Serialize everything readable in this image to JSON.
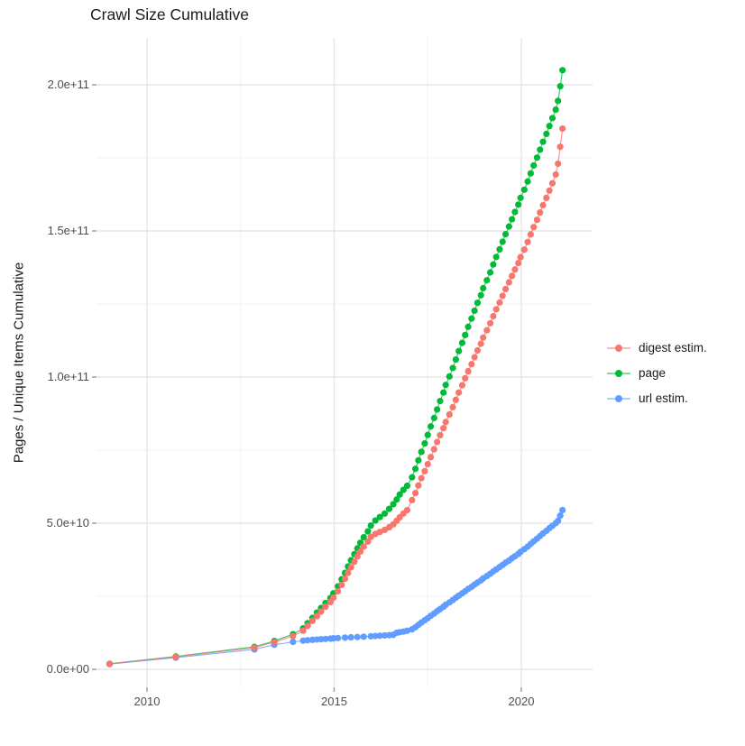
{
  "title": "Crawl Size Cumulative",
  "y_axis_title": "Pages / Unique Items Cumulative",
  "chart_data": {
    "type": "line",
    "title": "Crawl Size Cumulative",
    "xlabel": "",
    "ylabel": "Pages / Unique Items Cumulative",
    "legend_position": "right",
    "grid": true,
    "background": "#FFFFFF",
    "x_unit": "year (decimal)",
    "value_unit": "items, stored as billions (1e9)",
    "xlim": [
      2008.65,
      2021.9
    ],
    "ylim": [
      -6000000000,
      216000000000
    ],
    "x_ticks": {
      "major": [
        {
          "v": 2010,
          "label": "2010"
        },
        {
          "v": 2015,
          "label": "2015"
        },
        {
          "v": 2020,
          "label": "2020"
        }
      ],
      "minor": [
        2012.5,
        2017.5
      ]
    },
    "y_ticks": {
      "major": [
        {
          "v": 0,
          "label": "0.0e+00"
        },
        {
          "v": 50,
          "label": "5.0e+10"
        },
        {
          "v": 100,
          "label": "1.0e+11"
        },
        {
          "v": 150,
          "label": "1.5e+11"
        },
        {
          "v": 200,
          "label": "2.0e+11"
        }
      ],
      "minor": [
        25,
        75,
        125,
        175
      ]
    },
    "series": [
      {
        "name": "digest estim.",
        "color": "#F8766D",
        "points": [
          [
            2009.0,
            1.85
          ],
          [
            2010.77,
            4.25
          ],
          [
            2012.87,
            7.4
          ],
          [
            2013.4,
            9.3
          ],
          [
            2013.9,
            11.4
          ],
          [
            2014.17,
            13.2
          ],
          [
            2014.29,
            14.9
          ],
          [
            2014.42,
            16.6
          ],
          [
            2014.54,
            18.2
          ],
          [
            2014.65,
            19.8
          ],
          [
            2014.77,
            21.4
          ],
          [
            2014.9,
            23.0
          ],
          [
            2014.98,
            24.5
          ],
          [
            2015.1,
            26.7
          ],
          [
            2015.2,
            28.9
          ],
          [
            2015.29,
            31.0
          ],
          [
            2015.37,
            33.0
          ],
          [
            2015.45,
            34.9
          ],
          [
            2015.54,
            36.8
          ],
          [
            2015.62,
            38.6
          ],
          [
            2015.7,
            40.3
          ],
          [
            2015.79,
            42.0
          ],
          [
            2015.9,
            43.7
          ],
          [
            2015.98,
            45.3
          ],
          [
            2016.1,
            46.3
          ],
          [
            2016.22,
            47.0
          ],
          [
            2016.35,
            47.7
          ],
          [
            2016.47,
            48.6
          ],
          [
            2016.58,
            49.6
          ],
          [
            2016.67,
            50.8
          ],
          [
            2016.75,
            52.0
          ],
          [
            2016.85,
            53.3
          ],
          [
            2016.95,
            54.5
          ],
          [
            2017.08,
            57.9
          ],
          [
            2017.17,
            60.3
          ],
          [
            2017.25,
            62.9
          ],
          [
            2017.33,
            65.4
          ],
          [
            2017.42,
            67.8
          ],
          [
            2017.5,
            70.2
          ],
          [
            2017.58,
            72.6
          ],
          [
            2017.67,
            75.3
          ],
          [
            2017.75,
            77.8
          ],
          [
            2017.83,
            80.1
          ],
          [
            2017.92,
            82.5
          ],
          [
            2017.98,
            84.6
          ],
          [
            2018.08,
            87.2
          ],
          [
            2018.17,
            89.7
          ],
          [
            2018.25,
            92.2
          ],
          [
            2018.33,
            94.7
          ],
          [
            2018.42,
            97.2
          ],
          [
            2018.5,
            99.6
          ],
          [
            2018.58,
            102.0
          ],
          [
            2018.67,
            104.4
          ],
          [
            2018.75,
            106.8
          ],
          [
            2018.83,
            109.1
          ],
          [
            2018.92,
            111.4
          ],
          [
            2018.98,
            113.5
          ],
          [
            2019.08,
            116.0
          ],
          [
            2019.17,
            118.4
          ],
          [
            2019.25,
            120.8
          ],
          [
            2019.33,
            123.2
          ],
          [
            2019.42,
            125.5
          ],
          [
            2019.5,
            127.8
          ],
          [
            2019.58,
            130.1
          ],
          [
            2019.67,
            132.4
          ],
          [
            2019.75,
            134.6
          ],
          [
            2019.83,
            136.8
          ],
          [
            2019.92,
            139.0
          ],
          [
            2019.98,
            141.0
          ],
          [
            2020.08,
            143.6
          ],
          [
            2020.17,
            146.2
          ],
          [
            2020.25,
            148.8
          ],
          [
            2020.33,
            151.3
          ],
          [
            2020.42,
            153.8
          ],
          [
            2020.5,
            156.3
          ],
          [
            2020.58,
            158.8
          ],
          [
            2020.67,
            161.3
          ],
          [
            2020.75,
            163.8
          ],
          [
            2020.83,
            166.3
          ],
          [
            2020.92,
            169.3
          ],
          [
            2020.98,
            173.0
          ],
          [
            2021.04,
            178.8
          ],
          [
            2021.1,
            185.0
          ]
        ]
      },
      {
        "name": "page",
        "color": "#00BA38",
        "points": [
          [
            2009.0,
            1.9
          ],
          [
            2010.77,
            4.4
          ],
          [
            2012.87,
            7.7
          ],
          [
            2013.4,
            9.7
          ],
          [
            2013.9,
            12.0
          ],
          [
            2014.17,
            14.0
          ],
          [
            2014.29,
            15.8
          ],
          [
            2014.42,
            17.6
          ],
          [
            2014.54,
            19.4
          ],
          [
            2014.65,
            21.0
          ],
          [
            2014.77,
            22.7
          ],
          [
            2014.9,
            24.4
          ],
          [
            2014.98,
            26.0
          ],
          [
            2015.1,
            28.4
          ],
          [
            2015.2,
            30.8
          ],
          [
            2015.29,
            33.0
          ],
          [
            2015.37,
            35.2
          ],
          [
            2015.45,
            37.3
          ],
          [
            2015.54,
            39.4
          ],
          [
            2015.62,
            41.4
          ],
          [
            2015.7,
            43.3
          ],
          [
            2015.79,
            45.2
          ],
          [
            2015.9,
            47.2
          ],
          [
            2015.98,
            49.2
          ],
          [
            2016.1,
            50.9
          ],
          [
            2016.22,
            52.1
          ],
          [
            2016.35,
            53.3
          ],
          [
            2016.47,
            54.9
          ],
          [
            2016.58,
            56.5
          ],
          [
            2016.67,
            58.1
          ],
          [
            2016.75,
            59.8
          ],
          [
            2016.85,
            61.4
          ],
          [
            2016.95,
            62.8
          ],
          [
            2017.08,
            65.7
          ],
          [
            2017.17,
            68.6
          ],
          [
            2017.25,
            71.5
          ],
          [
            2017.33,
            74.4
          ],
          [
            2017.42,
            77.3
          ],
          [
            2017.5,
            80.2
          ],
          [
            2017.58,
            83.1
          ],
          [
            2017.67,
            86.0
          ],
          [
            2017.75,
            88.9
          ],
          [
            2017.83,
            91.8
          ],
          [
            2017.92,
            94.7
          ],
          [
            2017.98,
            97.3
          ],
          [
            2018.08,
            100.2
          ],
          [
            2018.17,
            103.1
          ],
          [
            2018.25,
            106.0
          ],
          [
            2018.33,
            108.9
          ],
          [
            2018.42,
            111.7
          ],
          [
            2018.5,
            114.4
          ],
          [
            2018.58,
            117.2
          ],
          [
            2018.67,
            120.0
          ],
          [
            2018.75,
            122.7
          ],
          [
            2018.83,
            125.4
          ],
          [
            2018.92,
            128.0
          ],
          [
            2018.98,
            130.4
          ],
          [
            2019.08,
            133.1
          ],
          [
            2019.17,
            135.8
          ],
          [
            2019.25,
            138.5
          ],
          [
            2019.33,
            141.1
          ],
          [
            2019.42,
            143.7
          ],
          [
            2019.5,
            146.3
          ],
          [
            2019.58,
            148.9
          ],
          [
            2019.67,
            151.5
          ],
          [
            2019.75,
            154.0
          ],
          [
            2019.83,
            156.5
          ],
          [
            2019.92,
            159.0
          ],
          [
            2019.98,
            161.3
          ],
          [
            2020.08,
            164.1
          ],
          [
            2020.17,
            166.9
          ],
          [
            2020.25,
            169.7
          ],
          [
            2020.33,
            172.4
          ],
          [
            2020.42,
            175.1
          ],
          [
            2020.5,
            177.8
          ],
          [
            2020.58,
            180.5
          ],
          [
            2020.67,
            183.2
          ],
          [
            2020.75,
            185.9
          ],
          [
            2020.83,
            188.6
          ],
          [
            2020.92,
            191.5
          ],
          [
            2020.98,
            194.5
          ],
          [
            2021.04,
            199.5
          ],
          [
            2021.1,
            205.0
          ]
        ]
      },
      {
        "name": "url estim.",
        "color": "#619CFF",
        "points": [
          [
            2009.0,
            1.8
          ],
          [
            2010.77,
            4.0
          ],
          [
            2012.87,
            6.8
          ],
          [
            2013.4,
            8.4
          ],
          [
            2013.9,
            9.4
          ],
          [
            2014.17,
            9.8
          ],
          [
            2014.29,
            9.95
          ],
          [
            2014.42,
            10.1
          ],
          [
            2014.54,
            10.2
          ],
          [
            2014.65,
            10.3
          ],
          [
            2014.77,
            10.4
          ],
          [
            2014.9,
            10.5
          ],
          [
            2014.98,
            10.6
          ],
          [
            2015.1,
            10.7
          ],
          [
            2015.29,
            10.85
          ],
          [
            2015.45,
            10.95
          ],
          [
            2015.62,
            11.05
          ],
          [
            2015.79,
            11.15
          ],
          [
            2015.98,
            11.3
          ],
          [
            2016.1,
            11.4
          ],
          [
            2016.22,
            11.5
          ],
          [
            2016.35,
            11.6
          ],
          [
            2016.47,
            11.7
          ],
          [
            2016.58,
            11.8
          ],
          [
            2016.67,
            12.5
          ],
          [
            2016.75,
            12.7
          ],
          [
            2016.85,
            12.9
          ],
          [
            2016.95,
            13.2
          ],
          [
            2017.08,
            13.7
          ],
          [
            2017.17,
            14.4
          ],
          [
            2017.25,
            15.2
          ],
          [
            2017.33,
            16.0
          ],
          [
            2017.42,
            16.8
          ],
          [
            2017.5,
            17.5
          ],
          [
            2017.58,
            18.3
          ],
          [
            2017.67,
            19.1
          ],
          [
            2017.75,
            19.9
          ],
          [
            2017.83,
            20.6
          ],
          [
            2017.92,
            21.4
          ],
          [
            2017.98,
            22.1
          ],
          [
            2018.08,
            22.9
          ],
          [
            2018.17,
            23.7
          ],
          [
            2018.25,
            24.5
          ],
          [
            2018.33,
            25.2
          ],
          [
            2018.42,
            26.0
          ],
          [
            2018.5,
            26.7
          ],
          [
            2018.58,
            27.5
          ],
          [
            2018.67,
            28.2
          ],
          [
            2018.75,
            29.0
          ],
          [
            2018.83,
            29.7
          ],
          [
            2018.92,
            30.4
          ],
          [
            2018.98,
            31.1
          ],
          [
            2019.08,
            31.9
          ],
          [
            2019.17,
            32.7
          ],
          [
            2019.25,
            33.5
          ],
          [
            2019.33,
            34.2
          ],
          [
            2019.42,
            35.0
          ],
          [
            2019.5,
            35.7
          ],
          [
            2019.58,
            36.5
          ],
          [
            2019.67,
            37.2
          ],
          [
            2019.75,
            38.0
          ],
          [
            2019.83,
            38.7
          ],
          [
            2019.92,
            39.5
          ],
          [
            2019.98,
            40.2
          ],
          [
            2020.08,
            41.1
          ],
          [
            2020.17,
            42.0
          ],
          [
            2020.25,
            42.9
          ],
          [
            2020.33,
            43.8
          ],
          [
            2020.42,
            44.7
          ],
          [
            2020.5,
            45.6
          ],
          [
            2020.58,
            46.5
          ],
          [
            2020.67,
            47.4
          ],
          [
            2020.75,
            48.3
          ],
          [
            2020.83,
            49.1
          ],
          [
            2020.92,
            50.0
          ],
          [
            2020.98,
            50.8
          ],
          [
            2021.04,
            52.6
          ],
          [
            2021.1,
            54.5
          ]
        ]
      }
    ]
  }
}
